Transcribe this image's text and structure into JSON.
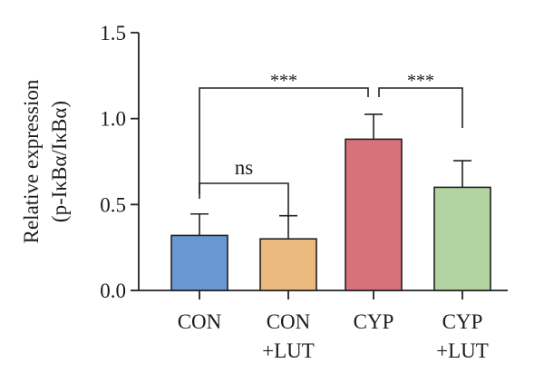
{
  "chart_data": {
    "type": "bar",
    "title": "",
    "xlabel": "",
    "ylabel_lines": [
      "Relative expression",
      "(p-IκBα/IκBα)"
    ],
    "ylim": [
      0,
      1.5
    ],
    "yticks": [
      0.0,
      0.5,
      1.0,
      1.5
    ],
    "ytick_labels": [
      "0.0",
      "0.5",
      "1.0",
      "1.5"
    ],
    "categories": [
      {
        "lines": [
          "CON"
        ]
      },
      {
        "lines": [
          "CON",
          "+LUT"
        ]
      },
      {
        "lines": [
          "CYP"
        ]
      },
      {
        "lines": [
          "CYP",
          "+LUT"
        ]
      }
    ],
    "values": [
      0.32,
      0.3,
      0.88,
      0.6
    ],
    "errors": [
      0.125,
      0.135,
      0.145,
      0.155
    ],
    "colors": [
      "#6a96d2",
      "#ecb97f",
      "#d8727a",
      "#b2d4a0"
    ],
    "significance": [
      {
        "from": 0,
        "to": 1,
        "label": "ns"
      },
      {
        "from": 0,
        "to": 2,
        "label": "***"
      },
      {
        "from": 2,
        "to": 3,
        "label": "***"
      }
    ],
    "grid": false,
    "legend": "none"
  }
}
